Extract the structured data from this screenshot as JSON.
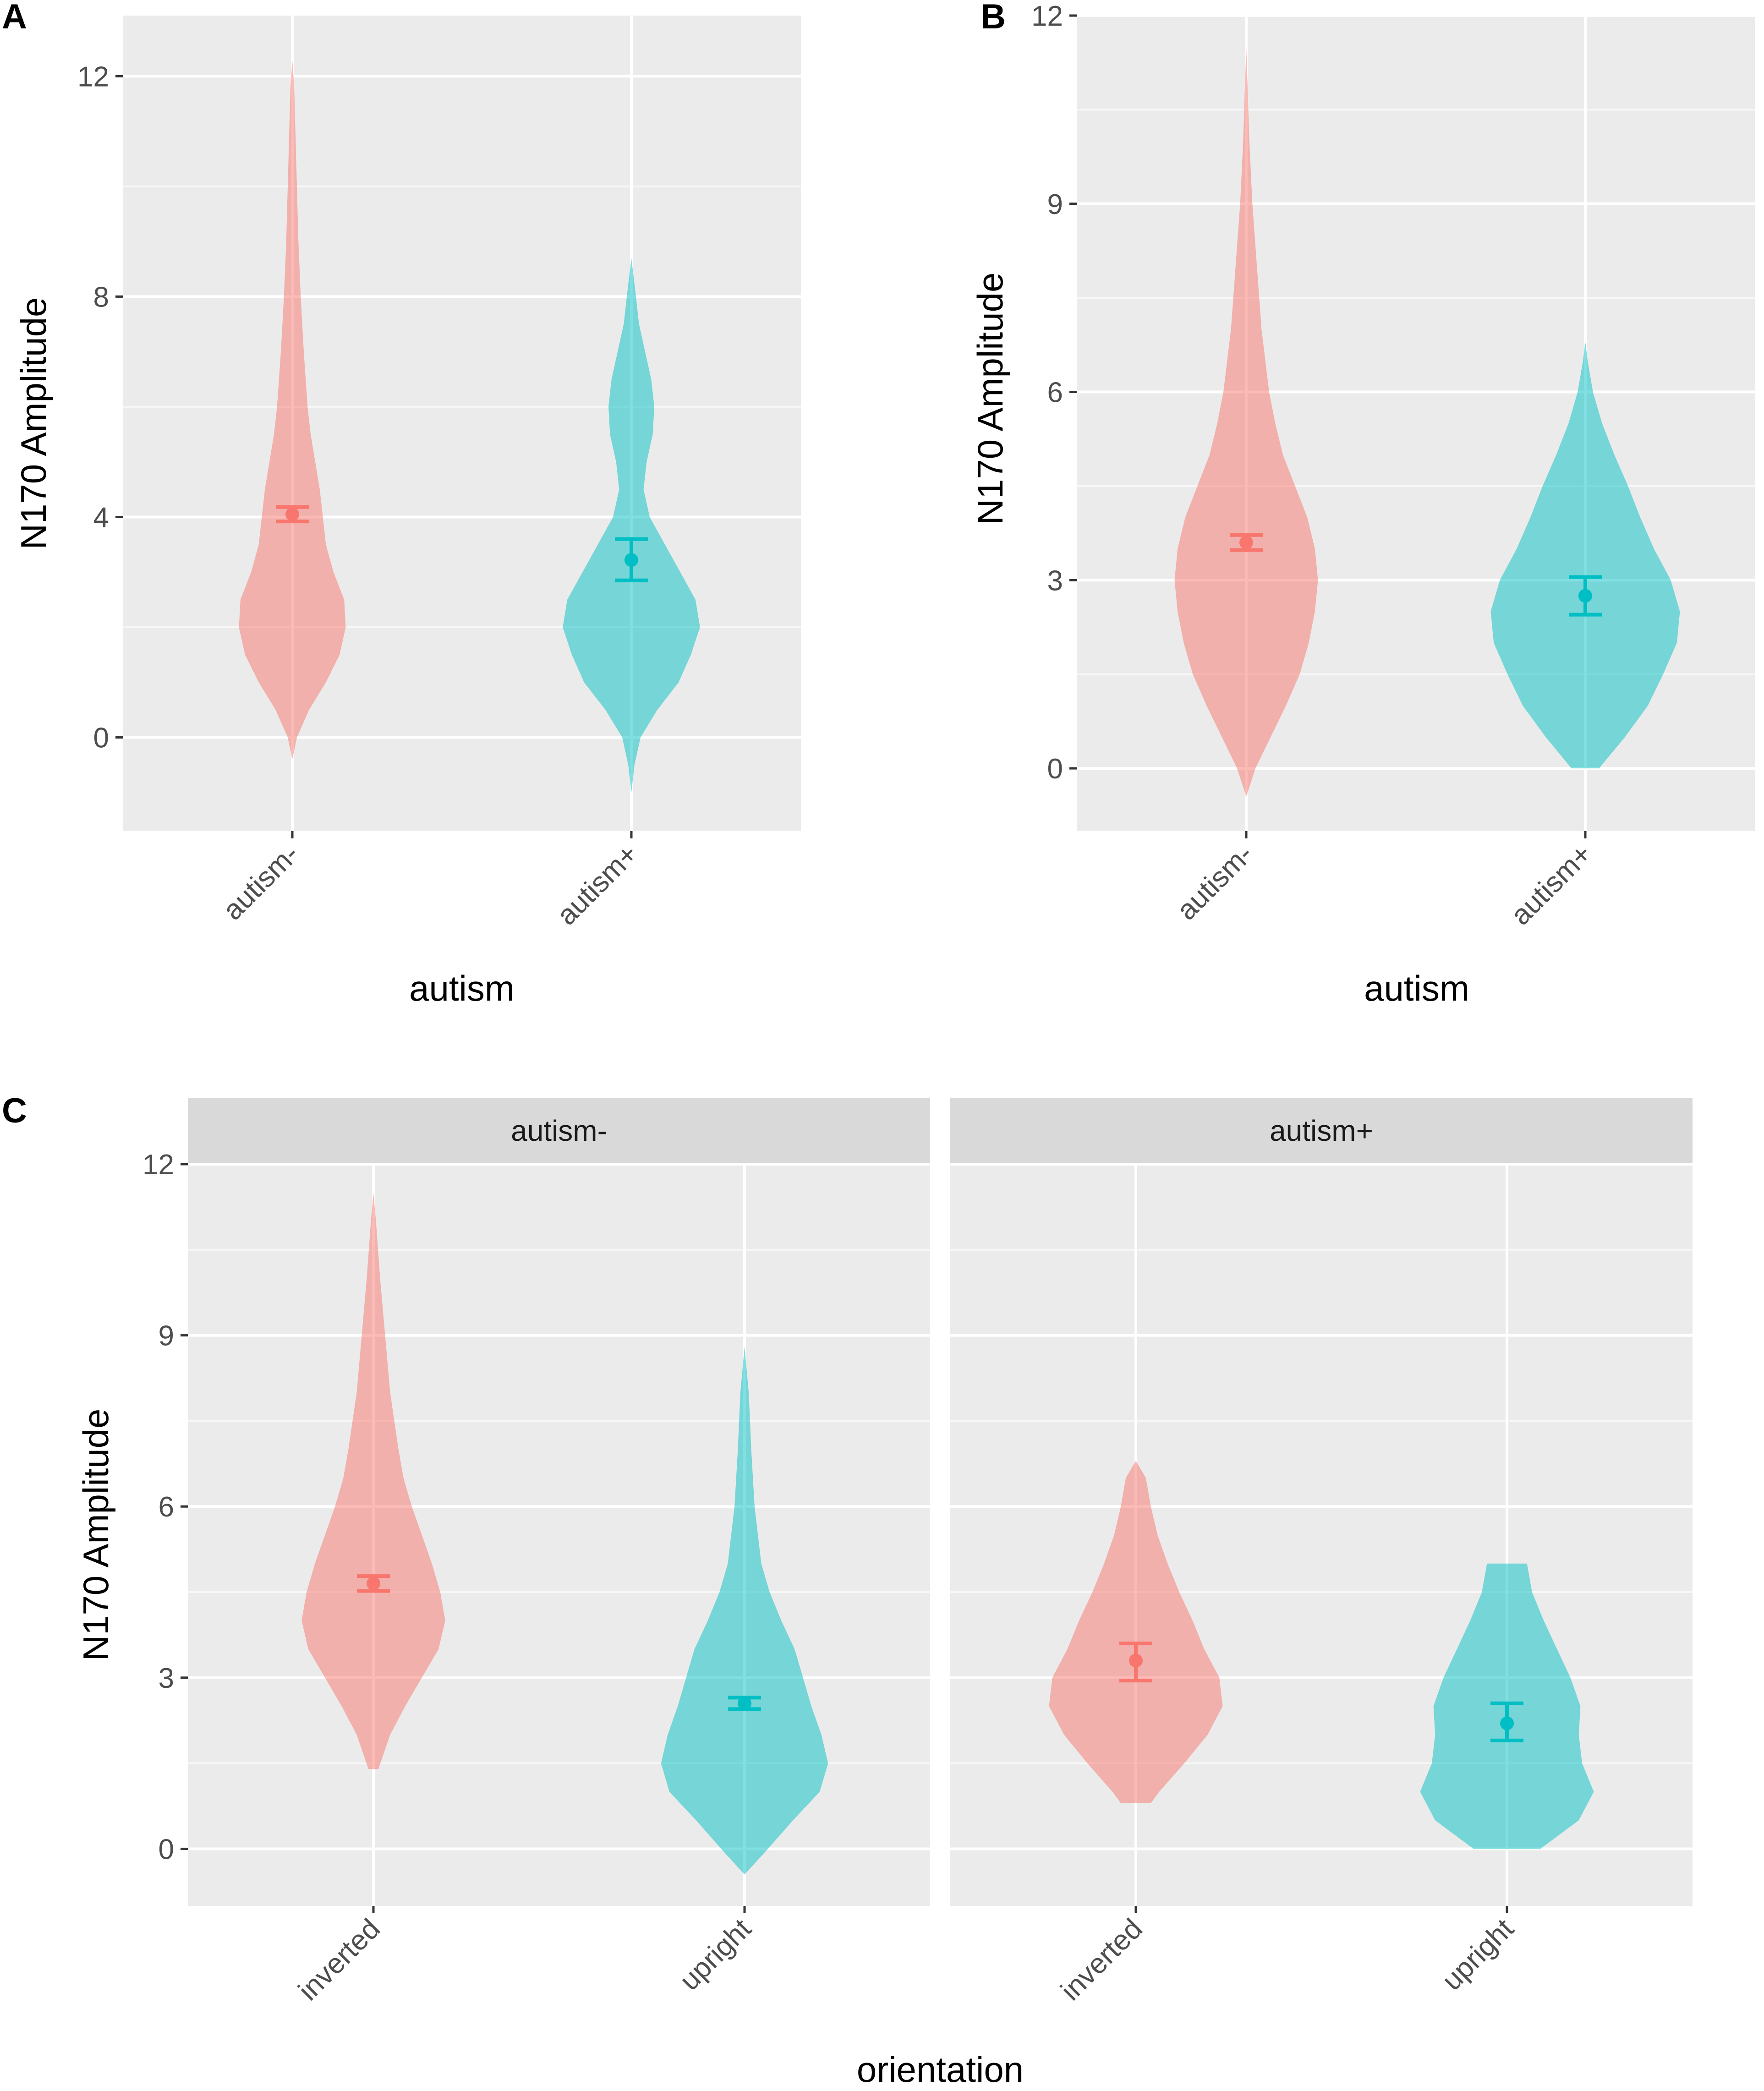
{
  "chart_data": [
    {
      "panel": "A",
      "type": "violin",
      "xlabel": "autism",
      "ylabel": "N170 Amplitude",
      "yticks": [
        0,
        4,
        8,
        12
      ],
      "ylim": [
        -1.7,
        13.1
      ],
      "categories": [
        "autism-",
        "autism+"
      ],
      "colors": [
        "#F8766D",
        "#00BFC4"
      ],
      "groups": [
        {
          "category": "autism-",
          "mean": 4.05,
          "ci_low": 3.92,
          "ci_high": 4.18,
          "density": [
            [
              -0.4,
              0
            ],
            [
              0,
              0.03
            ],
            [
              0.5,
              0.11
            ],
            [
              1,
              0.22
            ],
            [
              1.5,
              0.31
            ],
            [
              2,
              0.35
            ],
            [
              2.5,
              0.34
            ],
            [
              3,
              0.27
            ],
            [
              3.5,
              0.22
            ],
            [
              4,
              0.2
            ],
            [
              4.5,
              0.18
            ],
            [
              5,
              0.15
            ],
            [
              5.5,
              0.12
            ],
            [
              6,
              0.1
            ],
            [
              7,
              0.075
            ],
            [
              8,
              0.055
            ],
            [
              9,
              0.04
            ],
            [
              10,
              0.03
            ],
            [
              11,
              0.02
            ],
            [
              11.8,
              0.012
            ],
            [
              12.3,
              0
            ]
          ]
        },
        {
          "category": "autism+",
          "mean": 3.22,
          "ci_low": 2.85,
          "ci_high": 3.6,
          "density": [
            [
              -1,
              0
            ],
            [
              -0.5,
              0.02
            ],
            [
              0,
              0.06
            ],
            [
              0.5,
              0.17
            ],
            [
              1,
              0.31
            ],
            [
              1.5,
              0.39
            ],
            [
              2,
              0.45
            ],
            [
              2.5,
              0.42
            ],
            [
              3,
              0.32
            ],
            [
              3.5,
              0.22
            ],
            [
              4,
              0.12
            ],
            [
              4.5,
              0.08
            ],
            [
              5,
              0.1
            ],
            [
              5.5,
              0.14
            ],
            [
              6,
              0.15
            ],
            [
              6.5,
              0.13
            ],
            [
              7,
              0.09
            ],
            [
              7.5,
              0.05
            ],
            [
              8,
              0.03
            ],
            [
              8.7,
              0
            ]
          ]
        }
      ]
    },
    {
      "panel": "B",
      "type": "violin",
      "xlabel": "autism",
      "ylabel": "N170 Amplitude",
      "yticks": [
        0,
        3,
        6,
        9,
        12
      ],
      "ylim": [
        -1.0,
        12.0
      ],
      "categories": [
        "autism-",
        "autism+"
      ],
      "colors": [
        "#F8766D",
        "#00BFC4"
      ],
      "groups": [
        {
          "category": "autism-",
          "mean": 3.6,
          "ci_low": 3.48,
          "ci_high": 3.72,
          "density": [
            [
              -0.45,
              0
            ],
            [
              0,
              0.06
            ],
            [
              0.5,
              0.16
            ],
            [
              1,
              0.26
            ],
            [
              1.5,
              0.35
            ],
            [
              2,
              0.41
            ],
            [
              2.5,
              0.45
            ],
            [
              3,
              0.47
            ],
            [
              3.5,
              0.45
            ],
            [
              4,
              0.4
            ],
            [
              4.5,
              0.32
            ],
            [
              5,
              0.24
            ],
            [
              5.5,
              0.19
            ],
            [
              6,
              0.15
            ],
            [
              7,
              0.1
            ],
            [
              8,
              0.07
            ],
            [
              9,
              0.04
            ],
            [
              10,
              0.02
            ],
            [
              11,
              0.007
            ],
            [
              11.5,
              0
            ]
          ]
        },
        {
          "category": "autism+",
          "mean": 2.75,
          "ci_low": 2.45,
          "ci_high": 3.05,
          "density": [
            [
              0,
              0.09
            ],
            [
              0.5,
              0.26
            ],
            [
              1,
              0.41
            ],
            [
              1.5,
              0.51
            ],
            [
              2,
              0.6
            ],
            [
              2.5,
              0.62
            ],
            [
              3,
              0.56
            ],
            [
              3.5,
              0.45
            ],
            [
              4,
              0.36
            ],
            [
              4.5,
              0.28
            ],
            [
              5,
              0.19
            ],
            [
              5.5,
              0.11
            ],
            [
              6,
              0.05
            ],
            [
              6.5,
              0.015
            ],
            [
              6.8,
              0
            ]
          ]
        }
      ]
    },
    {
      "panel": "C",
      "type": "violin",
      "xlabel": "orientation",
      "ylabel": "N170 Amplitude",
      "yticks": [
        0,
        3,
        6,
        9,
        12
      ],
      "ylim": [
        -1.0,
        12.0
      ],
      "categories": [
        "inverted",
        "upright"
      ],
      "colors": [
        "#F8766D",
        "#00BFC4"
      ],
      "facets": [
        {
          "strip": "autism-",
          "groups": [
            {
              "category": "inverted",
              "mean": 4.65,
              "ci_low": 4.52,
              "ci_high": 4.78,
              "density": [
                [
                  1.4,
                  0.03
                ],
                [
                  2,
                  0.1
                ],
                [
                  2.5,
                  0.19
                ],
                [
                  3,
                  0.29
                ],
                [
                  3.5,
                  0.39
                ],
                [
                  4,
                  0.43
                ],
                [
                  4.5,
                  0.4
                ],
                [
                  5,
                  0.35
                ],
                [
                  5.5,
                  0.29
                ],
                [
                  6,
                  0.23
                ],
                [
                  6.5,
                  0.18
                ],
                [
                  7,
                  0.15
                ],
                [
                  8,
                  0.1
                ],
                [
                  9,
                  0.07
                ],
                [
                  10,
                  0.04
                ],
                [
                  11,
                  0.015
                ],
                [
                  11.5,
                  0
                ]
              ]
            },
            {
              "category": "upright",
              "mean": 2.55,
              "ci_low": 2.45,
              "ci_high": 2.65,
              "density": [
                [
                  -0.45,
                  0
                ],
                [
                  0,
                  0.14
                ],
                [
                  0.5,
                  0.29
                ],
                [
                  1,
                  0.45
                ],
                [
                  1.5,
                  0.5
                ],
                [
                  2,
                  0.46
                ],
                [
                  2.5,
                  0.4
                ],
                [
                  3,
                  0.35
                ],
                [
                  3.5,
                  0.3
                ],
                [
                  4,
                  0.22
                ],
                [
                  4.5,
                  0.15
                ],
                [
                  5,
                  0.1
                ],
                [
                  6,
                  0.06
                ],
                [
                  7,
                  0.04
                ],
                [
                  8,
                  0.025
                ],
                [
                  8.8,
                  0
                ]
              ]
            }
          ]
        },
        {
          "strip": "autism+",
          "groups": [
            {
              "category": "inverted",
              "mean": 3.3,
              "ci_low": 2.95,
              "ci_high": 3.6,
              "density": [
                [
                  0.8,
                  0.09
                ],
                [
                  1,
                  0.14
                ],
                [
                  1.5,
                  0.29
                ],
                [
                  2,
                  0.43
                ],
                [
                  2.5,
                  0.52
                ],
                [
                  3,
                  0.5
                ],
                [
                  3.5,
                  0.41
                ],
                [
                  4,
                  0.34
                ],
                [
                  4.5,
                  0.26
                ],
                [
                  5,
                  0.19
                ],
                [
                  5.5,
                  0.13
                ],
                [
                  6,
                  0.09
                ],
                [
                  6.5,
                  0.06
                ],
                [
                  6.8,
                  0
                ]
              ]
            },
            {
              "category": "upright",
              "mean": 2.2,
              "ci_low": 1.9,
              "ci_high": 2.55,
              "density": [
                [
                  0,
                  0.2
                ],
                [
                  0.5,
                  0.43
                ],
                [
                  1,
                  0.52
                ],
                [
                  1.5,
                  0.45
                ],
                [
                  2,
                  0.43
                ],
                [
                  2.5,
                  0.44
                ],
                [
                  3,
                  0.38
                ],
                [
                  3.5,
                  0.3
                ],
                [
                  4,
                  0.22
                ],
                [
                  4.5,
                  0.15
                ],
                [
                  5,
                  0.12
                ]
              ]
            }
          ]
        }
      ]
    }
  ]
}
